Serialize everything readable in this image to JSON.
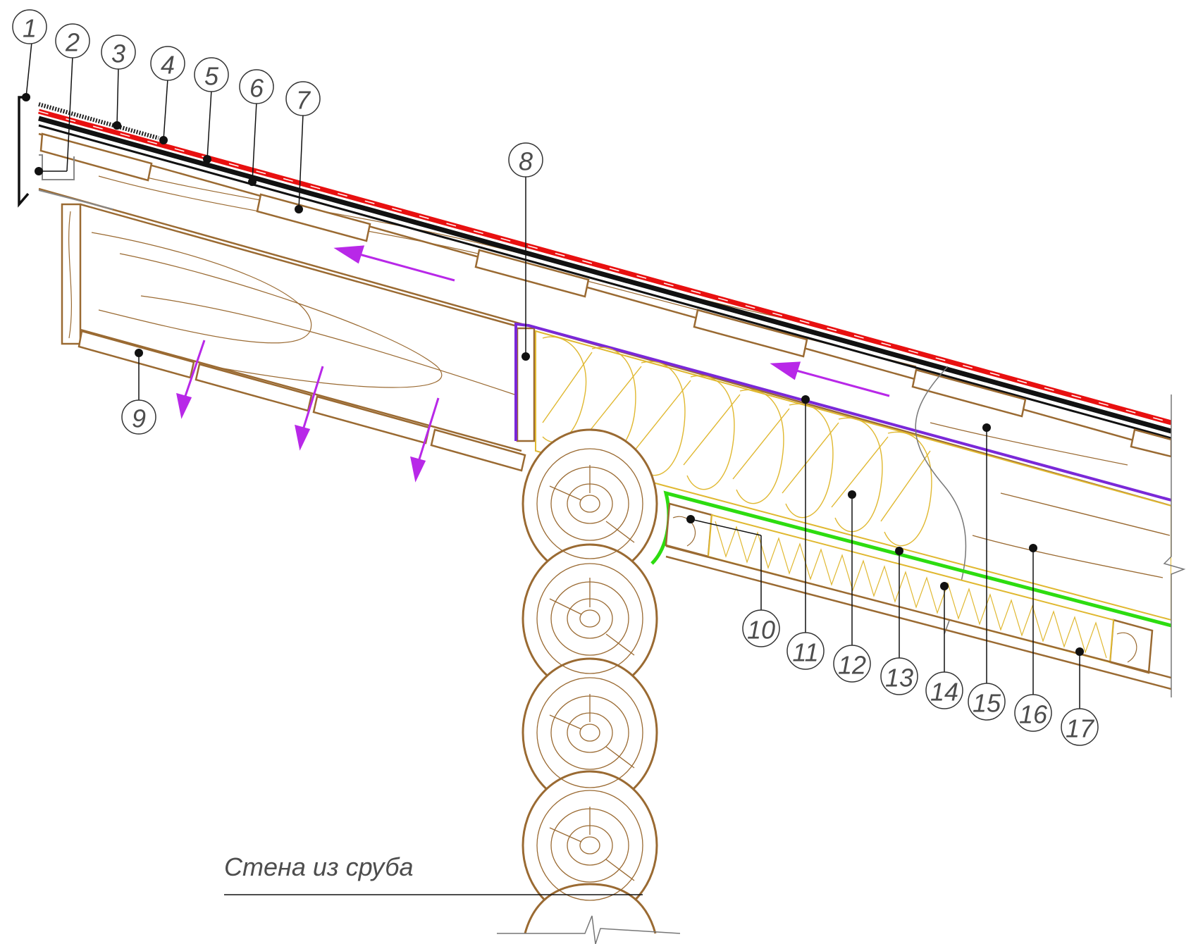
{
  "caption": "Стена из сруба",
  "callouts": [
    "1",
    "2",
    "3",
    "4",
    "5",
    "6",
    "7",
    "8",
    "9",
    "10",
    "11",
    "12",
    "13",
    "14",
    "15",
    "16",
    "17"
  ],
  "colors": {
    "wood": "#9a6a32",
    "insulation": "#e0b830",
    "vapor_barrier": "#2ddc10",
    "wind_membrane": "#7a28d8",
    "roof_waterproofing": "#e81010",
    "roof_covering": "#111111",
    "airflow_arrow": "#b828e8"
  },
  "icons": [
    "airflow-arrow",
    "leader-dot",
    "break-line"
  ]
}
